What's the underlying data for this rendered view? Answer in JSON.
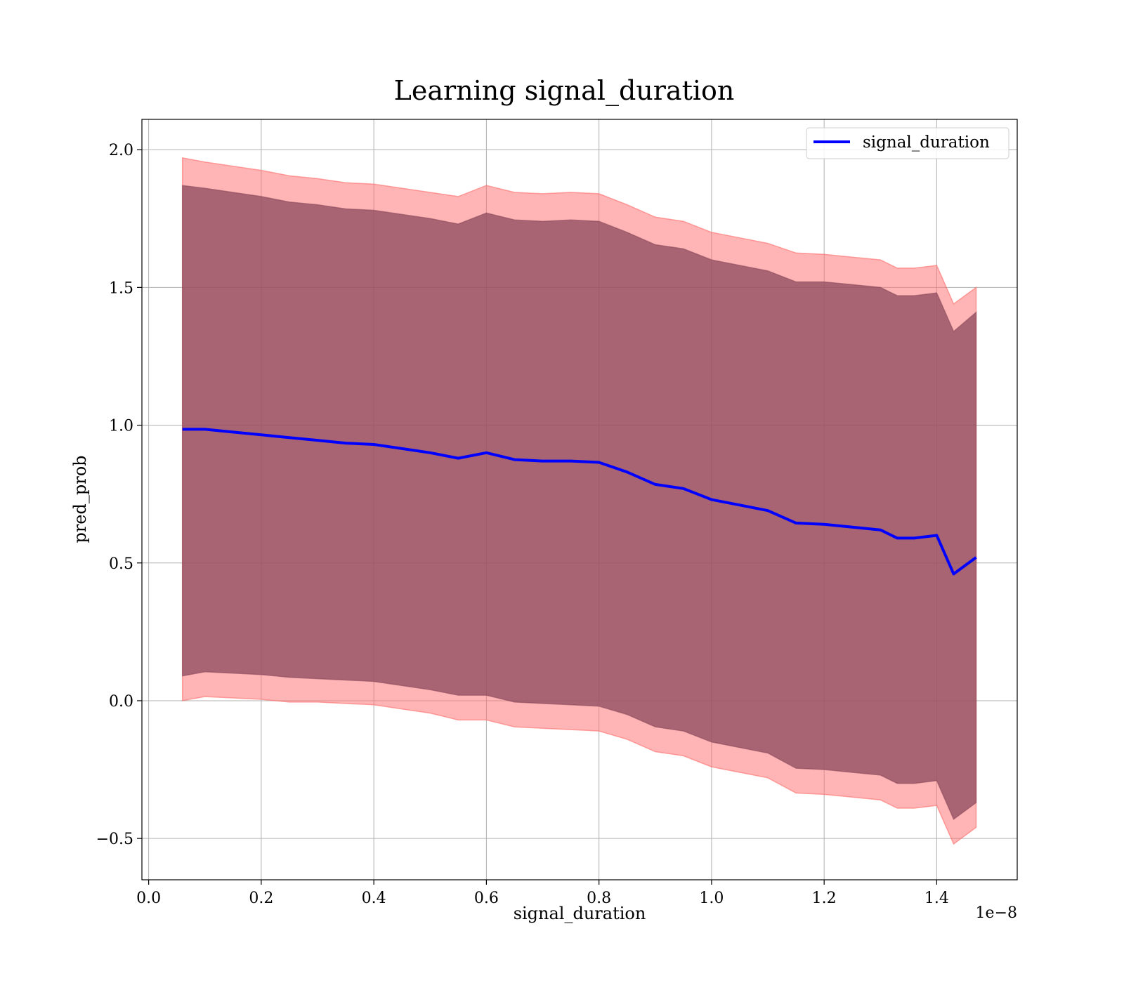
{
  "chart_data": {
    "type": "line",
    "title": "Learning signal_duration",
    "xlabel": "signal_duration",
    "ylabel": "pred_prob",
    "x_offset_label": "1e−8",
    "xlim": [
      -0.012,
      1.543
    ],
    "ylim": [
      -0.65,
      2.11
    ],
    "grid": true,
    "legend_position": "top-right",
    "x_ticks": [
      0.0,
      0.2,
      0.4,
      0.6,
      0.8,
      1.0,
      1.2,
      1.4
    ],
    "x_tick_labels": [
      "0.0",
      "0.2",
      "0.4",
      "0.6",
      "0.8",
      "1.0",
      "1.2",
      "1.4"
    ],
    "y_ticks": [
      -0.5,
      0.0,
      0.5,
      1.0,
      1.5,
      2.0
    ],
    "y_tick_labels": [
      "−0.5",
      "0.0",
      "0.5",
      "1.0",
      "1.5",
      "2.0"
    ],
    "series": [
      {
        "name": "signal_duration",
        "color": "#0000ff",
        "x": [
          0.06,
          0.1,
          0.15,
          0.2,
          0.25,
          0.3,
          0.35,
          0.4,
          0.45,
          0.5,
          0.55,
          0.6,
          0.65,
          0.7,
          0.75,
          0.8,
          0.85,
          0.9,
          0.95,
          1.0,
          1.05,
          1.1,
          1.15,
          1.2,
          1.25,
          1.3,
          1.33,
          1.36,
          1.4,
          1.43,
          1.47
        ],
        "y": [
          0.985,
          0.985,
          0.975,
          0.965,
          0.955,
          0.945,
          0.935,
          0.93,
          0.915,
          0.9,
          0.88,
          0.9,
          0.875,
          0.87,
          0.87,
          0.865,
          0.83,
          0.785,
          0.77,
          0.73,
          0.71,
          0.69,
          0.645,
          0.64,
          0.63,
          0.62,
          0.59,
          0.59,
          0.6,
          0.46,
          0.52
        ]
      }
    ],
    "bands": [
      {
        "color": "#ff6b6b",
        "opacity": 0.5,
        "upper": [
          1.97,
          1.955,
          1.94,
          1.925,
          1.905,
          1.895,
          1.88,
          1.875,
          1.86,
          1.845,
          1.83,
          1.87,
          1.845,
          1.84,
          1.845,
          1.84,
          1.8,
          1.755,
          1.74,
          1.7,
          1.68,
          1.66,
          1.625,
          1.62,
          1.61,
          1.6,
          1.57,
          1.57,
          1.58,
          1.44,
          1.5
        ],
        "lower": [
          0.0,
          0.015,
          0.01,
          0.005,
          -0.005,
          -0.005,
          -0.01,
          -0.015,
          -0.03,
          -0.045,
          -0.07,
          -0.07,
          -0.095,
          -0.1,
          -0.105,
          -0.11,
          -0.14,
          -0.185,
          -0.2,
          -0.24,
          -0.26,
          -0.28,
          -0.335,
          -0.34,
          -0.35,
          -0.36,
          -0.39,
          -0.39,
          -0.38,
          -0.52,
          -0.46
        ]
      },
      {
        "color": "#8b4a5c",
        "opacity": 0.75,
        "upper": [
          1.87,
          1.86,
          1.845,
          1.83,
          1.81,
          1.8,
          1.785,
          1.78,
          1.765,
          1.75,
          1.73,
          1.77,
          1.745,
          1.74,
          1.745,
          1.74,
          1.7,
          1.655,
          1.64,
          1.6,
          1.58,
          1.56,
          1.52,
          1.52,
          1.51,
          1.5,
          1.47,
          1.47,
          1.48,
          1.34,
          1.41
        ],
        "lower": [
          0.09,
          0.105,
          0.1,
          0.095,
          0.085,
          0.08,
          0.075,
          0.07,
          0.055,
          0.04,
          0.02,
          0.02,
          -0.005,
          -0.01,
          -0.015,
          -0.02,
          -0.05,
          -0.095,
          -0.11,
          -0.15,
          -0.17,
          -0.19,
          -0.245,
          -0.25,
          -0.26,
          -0.27,
          -0.3,
          -0.3,
          -0.29,
          -0.43,
          -0.37
        ]
      }
    ]
  }
}
